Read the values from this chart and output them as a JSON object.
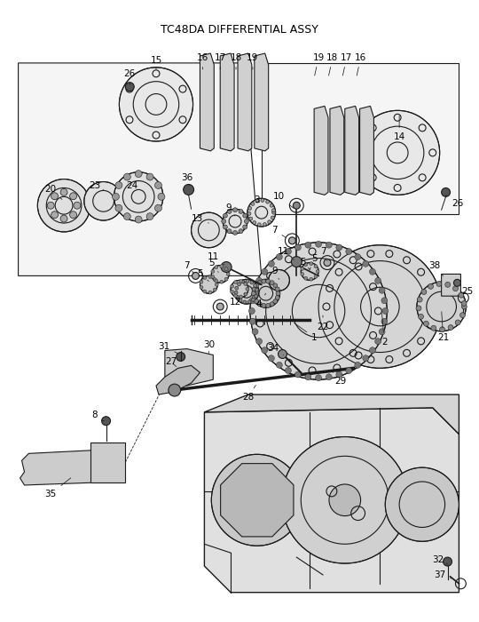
{
  "title": "TC48DA DIFFERENTIAL ASSY",
  "bg_color": "#ffffff",
  "line_color": "#1a1a1a",
  "text_color": "#000000",
  "fig_width": 5.4,
  "fig_height": 7.0,
  "dpi": 100
}
